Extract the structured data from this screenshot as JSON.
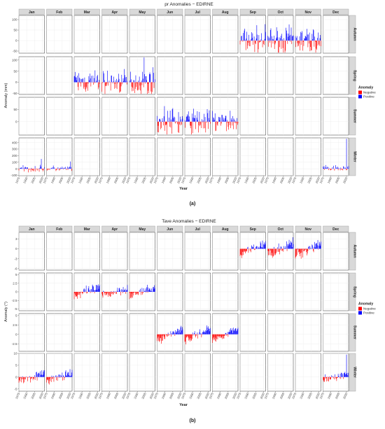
{
  "chart_data": [
    {
      "type": "bar",
      "title": "pr Anomalies − EDIRNE",
      "caption": "(a)",
      "xlabel": "Year",
      "ylabel": "Anomaly (mm)",
      "months": [
        "Jan",
        "Feb",
        "Mar",
        "Apr",
        "May",
        "Jun",
        "Jul",
        "Aug",
        "Sep",
        "Oct",
        "Nov",
        "Dec"
      ],
      "seasons": [
        "Autumn",
        "Spring",
        "Summer",
        "Winter"
      ],
      "season_of_month": [
        "Winter",
        "Winter",
        "Spring",
        "Spring",
        "Spring",
        "Summer",
        "Summer",
        "Summer",
        "Autumn",
        "Autumn",
        "Autumn",
        "Winter"
      ],
      "xlim": [
        1975,
        2024
      ],
      "xticks": [
        1975,
        1990,
        2005,
        2020
      ],
      "row_ylim": [
        [
          -60,
          120
        ],
        [
          -55,
          115
        ],
        [
          -55,
          100
        ],
        [
          -105,
          470
        ]
      ],
      "row_yticks": [
        [
          -50,
          0,
          50,
          100
        ],
        [
          -50,
          0,
          50,
          100
        ],
        [
          0,
          50
        ],
        [
          -100,
          0,
          100,
          200,
          300,
          400
        ]
      ],
      "legend": {
        "title": "Anomaly",
        "entries": [
          "Negative",
          "Positive"
        ],
        "position": "right"
      },
      "month_amplitude": [
        40,
        40,
        45,
        45,
        50,
        48,
        48,
        42,
        55,
        55,
        55,
        40
      ],
      "month_trend": [
        0,
        0,
        0,
        0,
        0,
        0,
        0,
        0,
        0,
        0,
        0,
        0
      ],
      "month_spike": [
        [
          2018,
          150
        ],
        [
          2021,
          110
        ],
        null,
        null,
        [
          2003,
          115
        ],
        null,
        null,
        null,
        null,
        null,
        null,
        [
          2020,
          460
        ]
      ],
      "colors": {
        "negative": "#ff0000",
        "positive": "#0000ff"
      }
    },
    {
      "type": "bar",
      "title": "Tave Anomalies − EDIRNE",
      "caption": "(b)",
      "xlabel": "Year",
      "ylabel": "Anomaly (°)",
      "months": [
        "Jan",
        "Feb",
        "Mar",
        "Apr",
        "May",
        "Jun",
        "Jul",
        "Aug",
        "Sep",
        "Oct",
        "Nov",
        "Dec"
      ],
      "seasons": [
        "Autumn",
        "Spring",
        "Summer",
        "Winter"
      ],
      "season_of_month": [
        "Winter",
        "Winter",
        "Spring",
        "Spring",
        "Spring",
        "Summer",
        "Summer",
        "Summer",
        "Autumn",
        "Autumn",
        "Autumn",
        "Winter"
      ],
      "xlim": [
        1975,
        2024
      ],
      "xticks": [
        1975,
        1990,
        2005,
        2020
      ],
      "row_ylim": [
        [
          -6.5,
          5
        ],
        [
          -5.5,
          5.5
        ],
        [
          -4.5,
          5.5
        ],
        [
          -6,
          10
        ]
      ],
      "row_yticks": [
        [
          -6,
          -3,
          0,
          3
        ],
        [
          -5.0,
          -2.5,
          0.0,
          2.5,
          5.0
        ],
        [
          -2.5,
          0.0,
          2.5,
          5.0
        ],
        [
          -5,
          0,
          5,
          10
        ]
      ],
      "legend": {
        "title": "Anomaly",
        "entries": [
          "Negative",
          "Positive"
        ],
        "position": "right"
      },
      "month_amplitude": [
        1.6,
        1.6,
        1.3,
        1.3,
        1.0,
        1.0,
        1.0,
        0.9,
        1.2,
        1.4,
        1.6,
        1.6
      ],
      "month_trend": [
        0.06,
        0.06,
        0.05,
        0.05,
        0.05,
        0.07,
        0.07,
        0.07,
        0.07,
        0.07,
        0.08,
        0.06
      ],
      "month_spike": [
        null,
        null,
        null,
        null,
        null,
        null,
        null,
        null,
        null,
        null,
        null,
        [
          2020,
          9.5
        ]
      ],
      "colors": {
        "negative": "#ff0000",
        "positive": "#0000ff"
      }
    }
  ]
}
